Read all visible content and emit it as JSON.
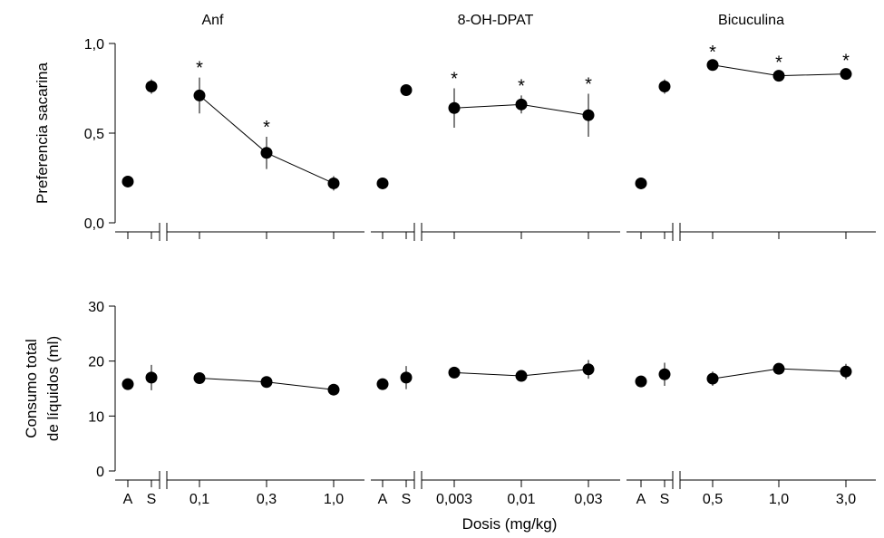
{
  "figure": {
    "x_axis_label": "Dosis (mg/kg)",
    "color_ink": "#000000",
    "color_background": "#ffffff",
    "marker_shape": "filled-circle",
    "significance_symbol": "*"
  },
  "chart_data": {
    "type": "scatter-line",
    "xlabel": "Dosis (mg/kg)",
    "rows": [
      {
        "ylabel_lines": [
          "Preferencia sacarina"
        ],
        "ylim": [
          0,
          1
        ],
        "yticks": [
          0,
          0.5,
          1
        ],
        "ytick_labels": [
          "0,0",
          "0,5",
          "1,0"
        ]
      },
      {
        "ylabel_lines": [
          "Consumo total",
          "de líquidos (ml)"
        ],
        "ylim": [
          0,
          30
        ],
        "yticks": [
          0,
          10,
          20,
          30
        ],
        "ytick_labels": [
          "0",
          "10",
          "20",
          "30"
        ]
      }
    ],
    "panels": [
      {
        "title": "Anf",
        "control_labels": [
          "A",
          "S"
        ],
        "dose_labels": [
          "0,1",
          "0,3",
          "1,0"
        ],
        "preference": {
          "controls": [
            {
              "mean": 0.23,
              "err": 0
            },
            {
              "mean": 0.76,
              "err": 0.04
            }
          ],
          "doses": [
            {
              "mean": 0.71,
              "err": 0.1
            },
            {
              "mean": 0.39,
              "err": 0.09
            },
            {
              "mean": 0.22,
              "err": 0.04
            }
          ],
          "significant": [
            true,
            true,
            false
          ]
        },
        "consumption": {
          "controls": [
            {
              "mean": 15.8,
              "err": 0.5
            },
            {
              "mean": 17.0,
              "err": 2.3
            }
          ],
          "doses": [
            {
              "mean": 16.9,
              "err": 0.5
            },
            {
              "mean": 16.2,
              "err": 0.5
            },
            {
              "mean": 14.8,
              "err": 0.4
            }
          ]
        }
      },
      {
        "title": "8-OH-DPAT",
        "control_labels": [
          "A",
          "S"
        ],
        "dose_labels": [
          "0,003",
          "0,01",
          "0,03"
        ],
        "preference": {
          "controls": [
            {
              "mean": 0.22,
              "err": 0
            },
            {
              "mean": 0.74,
              "err": 0.03
            }
          ],
          "doses": [
            {
              "mean": 0.64,
              "err": 0.11
            },
            {
              "mean": 0.66,
              "err": 0.05
            },
            {
              "mean": 0.6,
              "err": 0.12
            }
          ],
          "significant": [
            true,
            true,
            true
          ]
        },
        "consumption": {
          "controls": [
            {
              "mean": 15.8,
              "err": 0.5
            },
            {
              "mean": 17.0,
              "err": 2.1
            }
          ],
          "doses": [
            {
              "mean": 17.9,
              "err": 0.6
            },
            {
              "mean": 17.3,
              "err": 1.0
            },
            {
              "mean": 18.5,
              "err": 1.7
            }
          ]
        }
      },
      {
        "title": "Bicuculina",
        "control_labels": [
          "A",
          "S"
        ],
        "dose_labels": [
          "0,5",
          "1,0",
          "3,0"
        ],
        "preference": {
          "controls": [
            {
              "mean": 0.22,
              "err": 0
            },
            {
              "mean": 0.76,
              "err": 0.04
            }
          ],
          "doses": [
            {
              "mean": 0.88,
              "err": 0.02
            },
            {
              "mean": 0.82,
              "err": 0.02
            },
            {
              "mean": 0.83,
              "err": 0.02
            }
          ],
          "significant": [
            true,
            true,
            true
          ]
        },
        "consumption": {
          "controls": [
            {
              "mean": 16.3,
              "err": 0.5
            },
            {
              "mean": 17.6,
              "err": 2.1
            }
          ],
          "doses": [
            {
              "mean": 16.8,
              "err": 1.3
            },
            {
              "mean": 18.6,
              "err": 0.4
            },
            {
              "mean": 18.1,
              "err": 1.4
            }
          ]
        }
      }
    ]
  }
}
